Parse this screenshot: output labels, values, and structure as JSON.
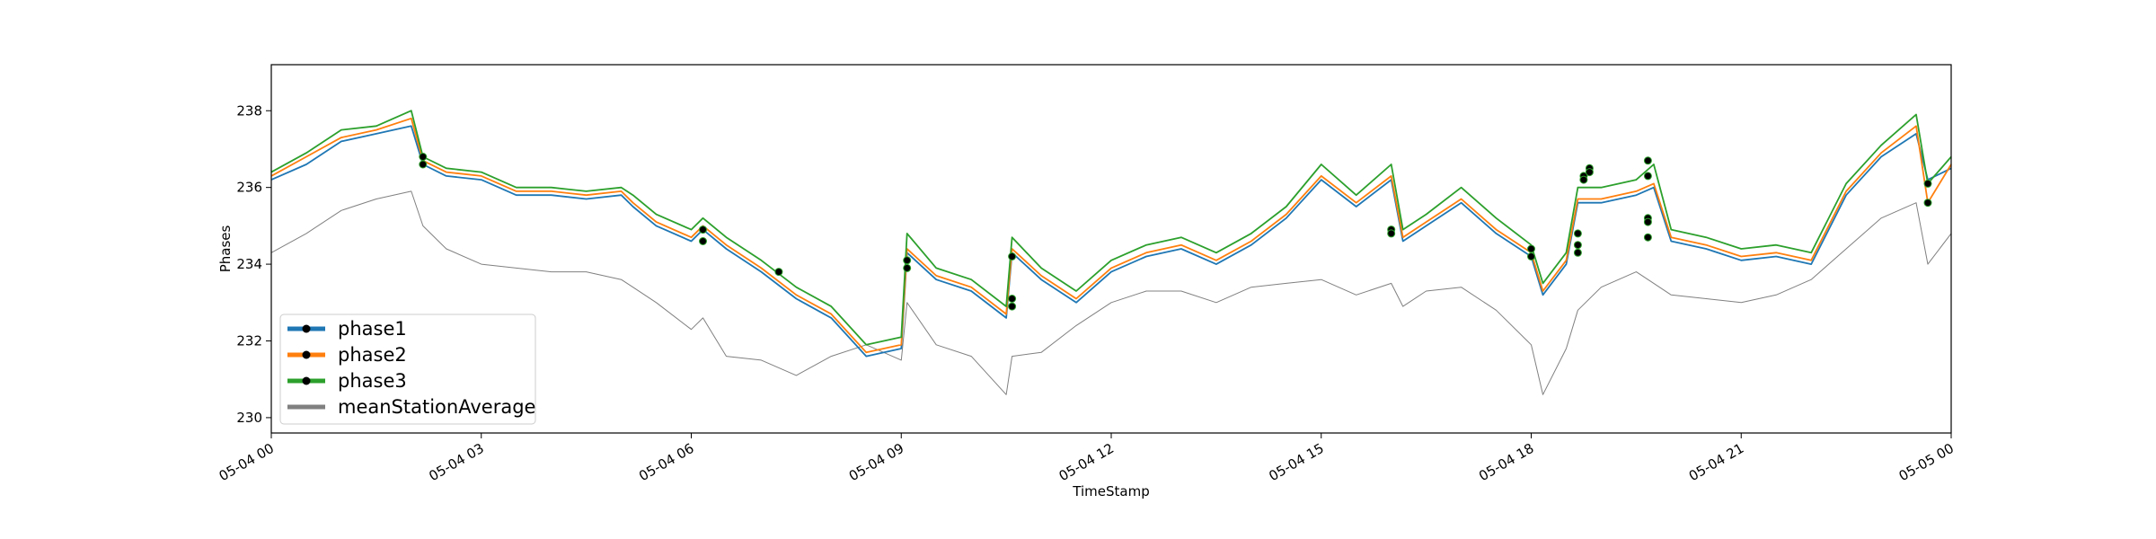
{
  "chart_data": {
    "type": "line",
    "title": "",
    "xlabel": "TimeStamp",
    "ylabel": "Phases",
    "x_ticks": [
      "05-04 00",
      "05-04 03",
      "05-04 06",
      "05-04 09",
      "05-04 12",
      "05-04 15",
      "05-04 18",
      "05-04 21",
      "05-05 00"
    ],
    "xlim": [
      "05-04 00:00",
      "05-05 00:00"
    ],
    "y_ticks": [
      230,
      232,
      234,
      236,
      238
    ],
    "ylim": [
      229.6,
      239.2
    ],
    "grid": false,
    "legend_position": "lower-left",
    "x": [
      "00:00",
      "00:30",
      "01:00",
      "01:30",
      "02:00",
      "02:10",
      "02:30",
      "03:00",
      "03:30",
      "04:00",
      "04:30",
      "05:00",
      "05:10",
      "05:30",
      "06:00",
      "06:10",
      "06:30",
      "07:00",
      "07:30",
      "08:00",
      "08:30",
      "09:00",
      "09:05",
      "09:30",
      "10:00",
      "10:30",
      "10:35",
      "11:00",
      "11:30",
      "12:00",
      "12:30",
      "13:00",
      "13:30",
      "14:00",
      "14:30",
      "15:00",
      "15:30",
      "16:00",
      "16:10",
      "16:30",
      "17:00",
      "17:30",
      "18:00",
      "18:10",
      "18:30",
      "18:40",
      "19:00",
      "19:30",
      "19:45",
      "20:00",
      "20:30",
      "21:00",
      "21:30",
      "22:00",
      "22:30",
      "23:00",
      "23:30",
      "23:40",
      "24:00"
    ],
    "series": [
      {
        "name": "phase1",
        "color": "#1f77b4",
        "values": [
          236.2,
          236.6,
          237.2,
          237.4,
          237.6,
          236.6,
          236.3,
          236.2,
          235.8,
          235.8,
          235.7,
          235.8,
          235.5,
          235.0,
          234.6,
          234.9,
          234.4,
          233.8,
          233.1,
          232.6,
          231.6,
          231.8,
          234.3,
          233.6,
          233.3,
          232.6,
          234.3,
          233.6,
          233.0,
          233.8,
          234.2,
          234.4,
          234.0,
          234.5,
          235.2,
          236.2,
          235.5,
          236.2,
          234.6,
          235.0,
          235.6,
          234.8,
          234.2,
          233.2,
          234.0,
          235.6,
          235.6,
          235.8,
          236.0,
          234.6,
          234.4,
          234.1,
          234.2,
          234.0,
          235.8,
          236.8,
          237.4,
          236.2,
          236.5
        ]
      },
      {
        "name": "phase2",
        "color": "#ff7f0e",
        "values": [
          236.3,
          236.8,
          237.3,
          237.5,
          237.8,
          236.7,
          236.4,
          236.3,
          235.9,
          235.9,
          235.8,
          235.9,
          235.6,
          235.1,
          234.7,
          235.0,
          234.5,
          233.9,
          233.2,
          232.7,
          231.7,
          231.9,
          234.4,
          233.7,
          233.4,
          232.7,
          234.4,
          233.7,
          233.1,
          233.9,
          234.3,
          234.5,
          234.1,
          234.6,
          235.3,
          236.3,
          235.6,
          236.3,
          234.7,
          235.1,
          235.7,
          234.9,
          234.3,
          233.3,
          234.1,
          235.7,
          235.7,
          235.9,
          236.1,
          234.7,
          234.5,
          234.2,
          234.3,
          234.1,
          235.9,
          236.9,
          237.6,
          235.6,
          236.6
        ]
      },
      {
        "name": "phase3",
        "color": "#2ca02c",
        "values": [
          236.4,
          236.9,
          237.5,
          237.6,
          238.0,
          236.8,
          236.5,
          236.4,
          236.0,
          236.0,
          235.9,
          236.0,
          235.8,
          235.3,
          234.9,
          235.2,
          234.7,
          234.1,
          233.4,
          232.9,
          231.9,
          232.1,
          234.8,
          233.9,
          233.6,
          232.9,
          234.7,
          233.9,
          233.3,
          234.1,
          234.5,
          234.7,
          234.3,
          234.8,
          235.5,
          236.6,
          235.8,
          236.6,
          234.9,
          235.3,
          236.0,
          235.2,
          234.5,
          233.5,
          234.3,
          236.0,
          236.0,
          236.2,
          236.6,
          234.9,
          234.7,
          234.4,
          234.5,
          234.3,
          236.1,
          237.1,
          237.9,
          236.1,
          236.8
        ]
      },
      {
        "name": "meanStationAverage",
        "color": "#808080",
        "values": [
          234.3,
          234.8,
          235.4,
          235.7,
          235.9,
          235.0,
          234.4,
          234.0,
          233.9,
          233.8,
          233.8,
          233.6,
          233.4,
          233.0,
          232.3,
          232.6,
          231.6,
          231.5,
          231.1,
          231.6,
          231.9,
          231.5,
          233.0,
          231.9,
          231.6,
          230.6,
          231.6,
          231.7,
          232.4,
          233.0,
          233.3,
          233.3,
          233.0,
          233.4,
          233.5,
          233.6,
          233.2,
          233.5,
          232.9,
          233.3,
          233.4,
          232.8,
          231.9,
          230.6,
          231.8,
          232.8,
          233.4,
          233.8,
          233.5,
          233.2,
          233.1,
          233.0,
          233.2,
          233.6,
          234.4,
          235.2,
          235.6,
          234.0,
          234.8
        ]
      }
    ],
    "markers": {
      "color": "#000000",
      "x": [
        "02:10",
        "02:10",
        "06:10",
        "06:10",
        "07:15",
        "09:05",
        "09:05",
        "10:35",
        "10:35",
        "10:35",
        "16:00",
        "16:00",
        "18:00",
        "18:00",
        "18:40",
        "18:40",
        "18:40",
        "18:45",
        "18:45",
        "18:50",
        "18:50",
        "19:40",
        "19:40",
        "19:40",
        "19:40",
        "19:40",
        "23:40",
        "23:40"
      ],
      "y": [
        236.8,
        236.6,
        234.9,
        234.6,
        233.8,
        234.1,
        233.9,
        234.2,
        233.1,
        232.9,
        234.9,
        234.8,
        234.4,
        234.2,
        234.8,
        234.5,
        234.3,
        236.3,
        236.2,
        236.5,
        236.4,
        236.7,
        236.3,
        235.2,
        235.1,
        234.7,
        236.1,
        235.6
      ]
    }
  }
}
